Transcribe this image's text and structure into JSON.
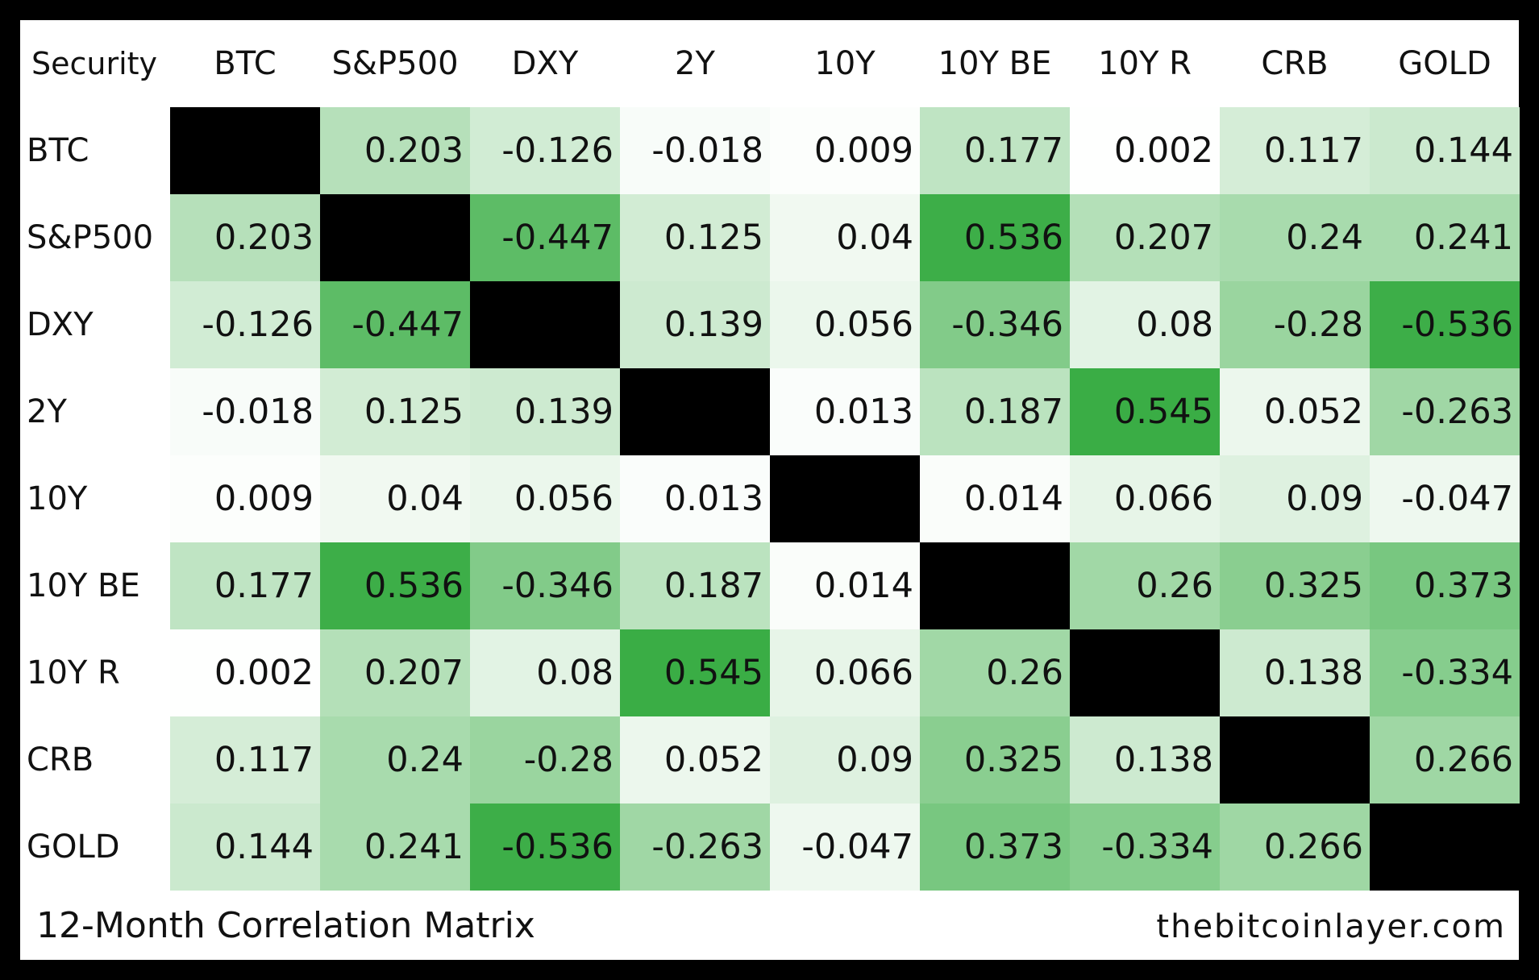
{
  "chart_data": {
    "type": "heatmap",
    "title": "12-Month Correlation Matrix",
    "corner_label": "Security",
    "labels": [
      "BTC",
      "S&P500",
      "DXY",
      "2Y",
      "10Y",
      "10Y BE",
      "10Y R",
      "CRB",
      "GOLD"
    ],
    "values": [
      [
        null,
        "0.203",
        "-0.126",
        "-0.018",
        "0.009",
        "0.177",
        "0.002",
        "0.117",
        "0.144"
      ],
      [
        "0.203",
        null,
        "-0.447",
        "0.125",
        "0.04",
        "0.536",
        "0.207",
        "0.24",
        "0.241"
      ],
      [
        "-0.126",
        "-0.447",
        null,
        "0.139",
        "0.056",
        "-0.346",
        "0.08",
        "-0.28",
        "-0.536"
      ],
      [
        "-0.018",
        "0.125",
        "0.139",
        null,
        "0.013",
        "0.187",
        "0.545",
        "0.052",
        "-0.263"
      ],
      [
        "0.009",
        "0.04",
        "0.056",
        "0.013",
        null,
        "0.014",
        "0.066",
        "0.09",
        "-0.047"
      ],
      [
        "0.177",
        "0.536",
        "-0.346",
        "0.187",
        "0.014",
        null,
        "0.26",
        "0.325",
        "0.373"
      ],
      [
        "0.002",
        "0.207",
        "0.08",
        "0.545",
        "0.066",
        "0.26",
        null,
        "0.138",
        "-0.334"
      ],
      [
        "0.117",
        "0.24",
        "-0.28",
        "0.052",
        "0.09",
        "0.325",
        "0.138",
        null,
        "0.266"
      ],
      [
        "0.144",
        "0.241",
        "-0.536",
        "-0.263",
        "-0.047",
        "0.373",
        "-0.334",
        "0.266",
        null
      ]
    ],
    "color_scale": {
      "low": "#ffffff",
      "high": "#3aad45",
      "max_abs": 0.545
    },
    "diagonal_color": "#000000",
    "grid": true,
    "legend": "none"
  },
  "footer": {
    "title": "12-Month Correlation Matrix",
    "credit": "thebitcoinlayer.com"
  }
}
